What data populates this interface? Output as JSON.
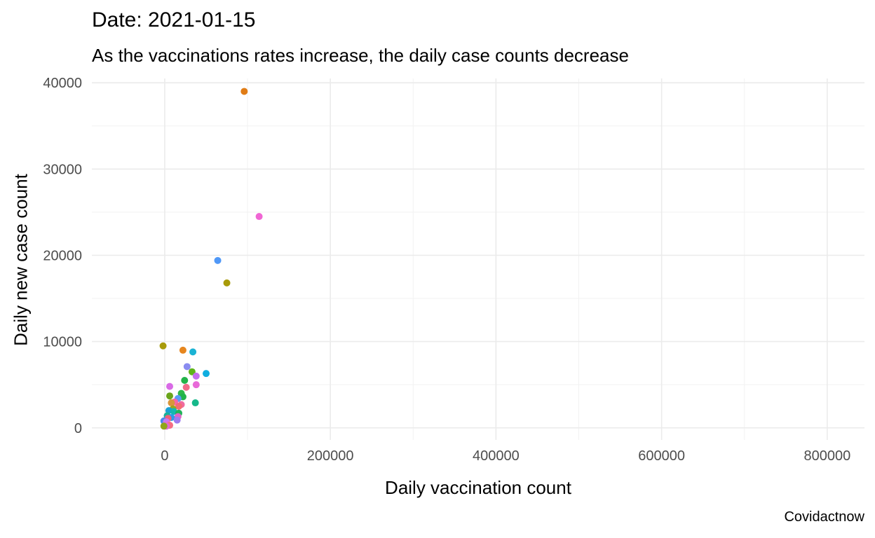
{
  "chart_data": {
    "type": "scatter",
    "title": "Date: 2021-01-15",
    "subtitle": "As the vaccinations rates increase, the daily case counts decrease",
    "xlabel": "Daily vaccination count",
    "ylabel": "Daily new case count",
    "caption": "Covidactnow",
    "xlim": [
      -88000,
      845000
    ],
    "ylim": [
      -1400,
      40500
    ],
    "x_ticks": [
      0,
      200000,
      400000,
      600000,
      800000
    ],
    "x_tick_labels": [
      "0",
      "200000",
      "400000",
      "600000",
      "800000"
    ],
    "y_ticks": [
      0,
      10000,
      20000,
      30000,
      40000
    ],
    "y_tick_labels": [
      "0",
      "10000",
      "20000",
      "30000",
      "40000"
    ],
    "grid": true,
    "legend": "none",
    "points": [
      {
        "x": 96000,
        "y": 39000,
        "color": "#e07c16"
      },
      {
        "x": 114000,
        "y": 24500,
        "color": "#f066d4"
      },
      {
        "x": 64000,
        "y": 19400,
        "color": "#5098f7"
      },
      {
        "x": 75000,
        "y": 16800,
        "color": "#a89b0a"
      },
      {
        "x": -2000,
        "y": 9500,
        "color": "#a89b0a"
      },
      {
        "x": 22000,
        "y": 9000,
        "color": "#e6861e"
      },
      {
        "x": 34000,
        "y": 8800,
        "color": "#1ab3d4"
      },
      {
        "x": 27000,
        "y": 7100,
        "color": "#8a8cf0"
      },
      {
        "x": 33000,
        "y": 6500,
        "color": "#5fb51a"
      },
      {
        "x": 50000,
        "y": 6300,
        "color": "#10aee0"
      },
      {
        "x": 38000,
        "y": 6000,
        "color": "#c46df0"
      },
      {
        "x": 24000,
        "y": 5500,
        "color": "#22b34a"
      },
      {
        "x": 38000,
        "y": 5000,
        "color": "#e86ad8"
      },
      {
        "x": 26000,
        "y": 4700,
        "color": "#f06a8a"
      },
      {
        "x": 6000,
        "y": 4800,
        "color": "#d96ae6"
      },
      {
        "x": 20000,
        "y": 4000,
        "color": "#2eb84a"
      },
      {
        "x": 22000,
        "y": 3600,
        "color": "#22b34a"
      },
      {
        "x": 6000,
        "y": 3700,
        "color": "#6aa51a"
      },
      {
        "x": 16000,
        "y": 3400,
        "color": "#5a9cf5"
      },
      {
        "x": 12000,
        "y": 3000,
        "color": "#f766a8"
      },
      {
        "x": 8000,
        "y": 2900,
        "color": "#d9963a"
      },
      {
        "x": 37000,
        "y": 2900,
        "color": "#16b88a"
      },
      {
        "x": 20000,
        "y": 2700,
        "color": "#f06aa0"
      },
      {
        "x": 17000,
        "y": 2500,
        "color": "#f36c73"
      },
      {
        "x": 10000,
        "y": 2200,
        "color": "#9ea51a"
      },
      {
        "x": 5000,
        "y": 2000,
        "color": "#1aa0d4"
      },
      {
        "x": 11000,
        "y": 1900,
        "color": "#14b8b0"
      },
      {
        "x": 17000,
        "y": 1700,
        "color": "#22b35a"
      },
      {
        "x": 3000,
        "y": 1400,
        "color": "#16b09a"
      },
      {
        "x": 16000,
        "y": 1300,
        "color": "#e065c8"
      },
      {
        "x": 8000,
        "y": 1200,
        "color": "#2a9de8"
      },
      {
        "x": 4000,
        "y": 1100,
        "color": "#f0607a"
      },
      {
        "x": 15000,
        "y": 900,
        "color": "#9d7cf0"
      },
      {
        "x": -1000,
        "y": 800,
        "color": "#4a86f0"
      },
      {
        "x": 2000,
        "y": 700,
        "color": "#c978f0"
      },
      {
        "x": 4000,
        "y": 400,
        "color": "#dd6ee0"
      },
      {
        "x": 6000,
        "y": 300,
        "color": "#f56d84"
      },
      {
        "x": 2000,
        "y": 200,
        "color": "#e06ad0"
      },
      {
        "x": -1000,
        "y": 200,
        "color": "#8fa51a"
      }
    ]
  }
}
